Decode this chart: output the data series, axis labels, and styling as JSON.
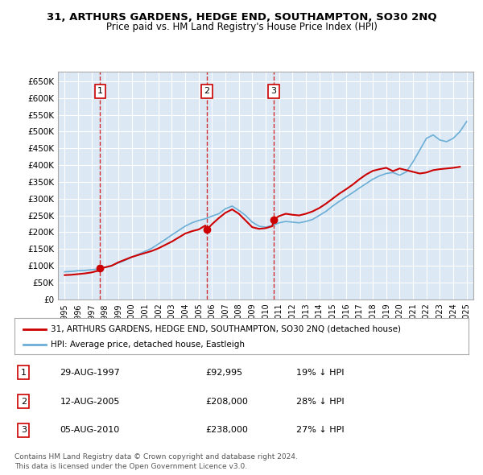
{
  "title": "31, ARTHURS GARDENS, HEDGE END, SOUTHAMPTON, SO30 2NQ",
  "subtitle": "Price paid vs. HM Land Registry's House Price Index (HPI)",
  "bg_color": "#dce9f5",
  "plot_bg": "#dce9f5",
  "grid_color": "#ffffff",
  "legend_line1": "31, ARTHURS GARDENS, HEDGE END, SOUTHAMPTON, SO30 2NQ (detached house)",
  "legend_line2": "HPI: Average price, detached house, Eastleigh",
  "footer1": "Contains HM Land Registry data © Crown copyright and database right 2024.",
  "footer2": "This data is licensed under the Open Government Licence v3.0.",
  "sales": [
    {
      "num": 1,
      "date": "29-AUG-1997",
      "price": 92995,
      "hpi_pct": "19% ↓ HPI",
      "x": 1997.65
    },
    {
      "num": 2,
      "date": "12-AUG-2005",
      "price": 208000,
      "hpi_pct": "28% ↓ HPI",
      "x": 2005.62
    },
    {
      "num": 3,
      "date": "05-AUG-2010",
      "price": 238000,
      "hpi_pct": "27% ↓ HPI",
      "x": 2010.6
    }
  ],
  "ylim": [
    0,
    680000
  ],
  "xlim": [
    1994.5,
    2025.5
  ],
  "yticks": [
    0,
    50000,
    100000,
    150000,
    200000,
    250000,
    300000,
    350000,
    400000,
    450000,
    500000,
    550000,
    600000,
    650000
  ],
  "ytick_labels": [
    "£0",
    "£50K",
    "£100K",
    "£150K",
    "£200K",
    "£250K",
    "£300K",
    "£350K",
    "£400K",
    "£450K",
    "£500K",
    "£550K",
    "£600K",
    "£650K"
  ],
  "xticks": [
    1995,
    1996,
    1997,
    1998,
    1999,
    2000,
    2001,
    2002,
    2003,
    2004,
    2005,
    2006,
    2007,
    2008,
    2009,
    2010,
    2011,
    2012,
    2013,
    2014,
    2015,
    2016,
    2017,
    2018,
    2019,
    2020,
    2021,
    2022,
    2023,
    2024,
    2025
  ],
  "hpi_x": [
    1995,
    1995.5,
    1996,
    1996.5,
    1997,
    1997.5,
    1998,
    1998.5,
    1999,
    1999.5,
    2000,
    2000.5,
    2001,
    2001.5,
    2002,
    2002.5,
    2003,
    2003.5,
    2004,
    2004.5,
    2005,
    2005.5,
    2006,
    2006.5,
    2007,
    2007.5,
    2008,
    2008.5,
    2009,
    2009.5,
    2010,
    2010.5,
    2011,
    2011.5,
    2012,
    2012.5,
    2013,
    2013.5,
    2014,
    2014.5,
    2015,
    2015.5,
    2016,
    2016.5,
    2017,
    2017.5,
    2018,
    2018.5,
    2019,
    2019.5,
    2020,
    2020.5,
    2021,
    2021.5,
    2022,
    2022.5,
    2023,
    2023.5,
    2024,
    2024.5,
    2025
  ],
  "hpi_y": [
    82000,
    83000,
    85000,
    86000,
    88000,
    90000,
    95000,
    100000,
    108000,
    116000,
    125000,
    134000,
    143000,
    152000,
    165000,
    178000,
    192000,
    205000,
    218000,
    228000,
    235000,
    240000,
    248000,
    255000,
    270000,
    278000,
    265000,
    250000,
    230000,
    218000,
    215000,
    220000,
    228000,
    232000,
    230000,
    228000,
    232000,
    238000,
    250000,
    262000,
    278000,
    292000,
    305000,
    318000,
    332000,
    345000,
    358000,
    368000,
    375000,
    378000,
    370000,
    380000,
    410000,
    445000,
    480000,
    490000,
    475000,
    470000,
    480000,
    500000,
    530000
  ],
  "property_x": [
    1995,
    1995.5,
    1996,
    1996.5,
    1997,
    1997.5,
    1997.65,
    1998,
    1998.5,
    1999,
    1999.5,
    2000,
    2000.5,
    2001,
    2001.5,
    2002,
    2002.5,
    2003,
    2003.5,
    2004,
    2004.5,
    2005,
    2005.5,
    2005.62,
    2006,
    2006.5,
    2007,
    2007.5,
    2008,
    2008.5,
    2009,
    2009.5,
    2010,
    2010.5,
    2010.6,
    2011,
    2011.5,
    2012,
    2012.5,
    2013,
    2013.5,
    2014,
    2014.5,
    2015,
    2015.5,
    2016,
    2016.5,
    2017,
    2017.5,
    2018,
    2018.5,
    2019,
    2019.5,
    2020,
    2020.5,
    2021,
    2021.5,
    2022,
    2022.5,
    2023,
    2023.5,
    2024,
    2024.5
  ],
  "property_y": [
    72000,
    73000,
    75000,
    77000,
    80000,
    85000,
    92995,
    95000,
    100000,
    110000,
    118000,
    126000,
    132000,
    138000,
    144000,
    152000,
    162000,
    172000,
    184000,
    196000,
    203000,
    208000,
    220000,
    208000,
    224000,
    242000,
    258000,
    268000,
    255000,
    235000,
    215000,
    210000,
    212000,
    218000,
    238000,
    248000,
    255000,
    252000,
    250000,
    255000,
    262000,
    272000,
    285000,
    300000,
    315000,
    328000,
    342000,
    358000,
    372000,
    383000,
    388000,
    392000,
    382000,
    390000,
    385000,
    380000,
    375000,
    378000,
    385000,
    388000,
    390000,
    392000,
    395000
  ]
}
